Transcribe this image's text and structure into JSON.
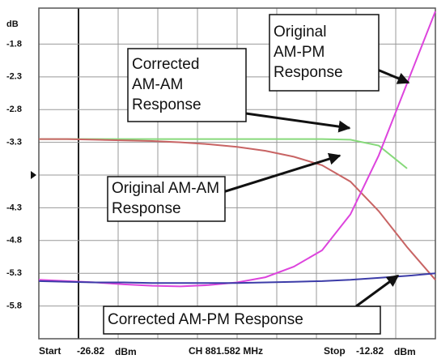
{
  "chart_data": {
    "type": "line",
    "y_unit": "dB",
    "xlim": [
      -26.82,
      -12.82
    ],
    "ylim": [
      -6.3,
      -1.25
    ],
    "yticks": [
      -1.8,
      -2.3,
      -2.8,
      -3.3,
      -4.3,
      -4.8,
      -5.3,
      -5.8
    ],
    "grid_y": [
      -1.8,
      -2.3,
      -2.8,
      -3.3,
      -3.8,
      -4.3,
      -4.8,
      -5.3,
      -5.8
    ],
    "grid_x": [
      -26.82,
      -25.42,
      -24.02,
      -22.62,
      -21.22,
      -19.82,
      -18.42,
      -17.02,
      -15.62,
      -14.22,
      -12.82
    ],
    "reference_level": -3.8,
    "footer": {
      "start": "Start",
      "unit": "dBm",
      "center": "CH 881.582 MHz",
      "stop": "Stop"
    },
    "x": [
      -26.82,
      -25.82,
      -24.82,
      -23.82,
      -22.82,
      -21.82,
      -20.82,
      -19.82,
      -18.82,
      -17.82,
      -16.82,
      -15.82,
      -14.82,
      -13.82,
      -12.82
    ],
    "series": [
      {
        "name": "Corrected AM-AM",
        "color": "#86d97a",
        "values": [
          -3.25,
          -3.25,
          -3.25,
          -3.25,
          -3.25,
          -3.25,
          -3.25,
          -3.25,
          -3.25,
          -3.25,
          -3.25,
          -3.26,
          -3.35,
          -3.7,
          null
        ]
      },
      {
        "name": "Original AM-AM",
        "color": "#c86464",
        "values": [
          -3.25,
          -3.25,
          -3.26,
          -3.27,
          -3.28,
          -3.3,
          -3.33,
          -3.37,
          -3.43,
          -3.52,
          -3.65,
          -3.9,
          -4.35,
          -4.9,
          -5.4
        ]
      },
      {
        "name": "Original AM-PM",
        "color": "#dd44dd",
        "values": [
          -5.4,
          -5.42,
          -5.44,
          -5.47,
          -5.49,
          -5.5,
          -5.48,
          -5.44,
          -5.36,
          -5.2,
          -4.95,
          -4.4,
          -3.5,
          -2.4,
          -1.3
        ]
      },
      {
        "name": "Corrected AM-PM",
        "color": "#3c3ca8",
        "values": [
          -5.42,
          -5.43,
          -5.44,
          -5.44,
          -5.45,
          -5.45,
          -5.45,
          -5.45,
          -5.44,
          -5.43,
          -5.42,
          -5.4,
          -5.37,
          -5.34,
          -5.3
        ]
      }
    ],
    "annotations": [
      {
        "lines": [
          "Original",
          "AM-PM",
          "Response"
        ]
      },
      {
        "lines": [
          "Corrected",
          "AM-AM",
          "Response"
        ]
      },
      {
        "lines": [
          "Original AM-AM",
          "Response"
        ]
      },
      {
        "lines": [
          "Corrected AM-PM Response"
        ]
      }
    ]
  }
}
